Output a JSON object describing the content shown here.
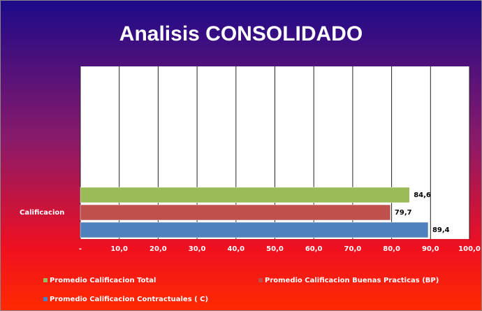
{
  "chart_data": {
    "type": "hbar",
    "title": "Analisis  CONSOLIDADO",
    "categories": [
      "Calificacion"
    ],
    "series": [
      {
        "name": "Promedio Calificacion Total",
        "color": "#9bbb59",
        "values": [
          84.6
        ],
        "value_labels": [
          "84,6"
        ]
      },
      {
        "name": "Promedio Calificacion Buenas Practicas (BP)",
        "color": "#c0504d",
        "values": [
          79.7
        ],
        "value_labels": [
          "79,7"
        ]
      },
      {
        "name": "Promedio Calificacion Contractuales ( C)",
        "color": "#4f81bd",
        "values": [
          89.4
        ],
        "value_labels": [
          "89,4"
        ]
      }
    ],
    "xlim": [
      0,
      100
    ],
    "xticks": [
      {
        "value": 0,
        "label": "-"
      },
      {
        "value": 10,
        "label": "10,0"
      },
      {
        "value": 20,
        "label": "20,0"
      },
      {
        "value": 30,
        "label": "30,0"
      },
      {
        "value": 40,
        "label": "40,0"
      },
      {
        "value": 50,
        "label": "50,0"
      },
      {
        "value": 60,
        "label": "60,0"
      },
      {
        "value": 70,
        "label": "70,0"
      },
      {
        "value": 80,
        "label": "80,0"
      },
      {
        "value": 90,
        "label": "90,0"
      },
      {
        "value": 100,
        "label": "100,0"
      }
    ],
    "grid": true,
    "legend": "bottom"
  }
}
